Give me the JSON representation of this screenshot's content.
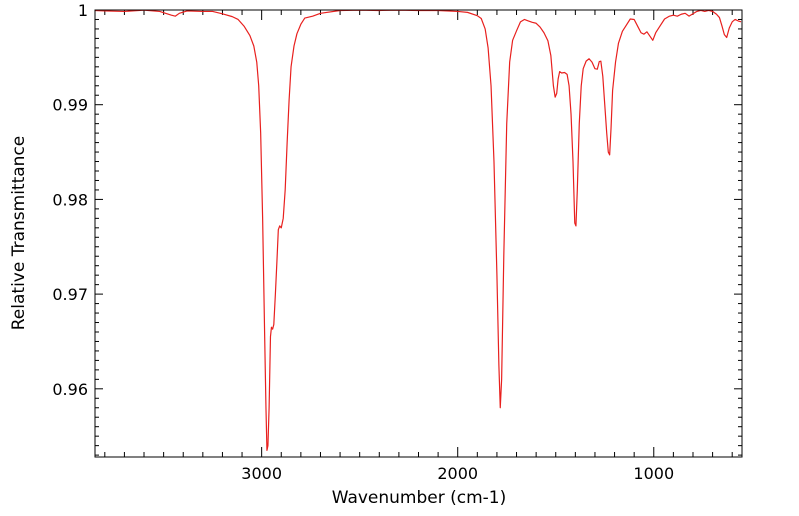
{
  "chart_data": {
    "type": "line",
    "title": "",
    "xlabel": "Wavenumber (cm-1)",
    "ylabel": "Relative Transmittance",
    "xlim": [
      3850,
      550
    ],
    "ylim": [
      0.9528,
      1.0
    ],
    "x_reversed": true,
    "grid": false,
    "legend": "none",
    "line_color": "#e8201e",
    "axis_color": "#000000",
    "x_ticks": [
      {
        "value": 3000,
        "label": "3000"
      },
      {
        "value": 2000,
        "label": "2000"
      },
      {
        "value": 1000,
        "label": "1000"
      }
    ],
    "y_ticks": [
      {
        "value": 1.0,
        "label": "1"
      },
      {
        "value": 0.99,
        "label": "0.99"
      },
      {
        "value": 0.98,
        "label": "0.98"
      },
      {
        "value": 0.97,
        "label": "0.97"
      },
      {
        "value": 0.96,
        "label": "0.96"
      }
    ],
    "series": [
      {
        "points": [
          [
            3850,
            0.99995
          ],
          [
            3800,
            0.9999
          ],
          [
            3700,
            0.99985
          ],
          [
            3600,
            0.99998
          ],
          [
            3520,
            0.99985
          ],
          [
            3460,
            0.99945
          ],
          [
            3440,
            0.99935
          ],
          [
            3420,
            0.99965
          ],
          [
            3380,
            0.9999
          ],
          [
            3300,
            0.99985
          ],
          [
            3250,
            0.99985
          ],
          [
            3200,
            0.9996
          ],
          [
            3150,
            0.9993
          ],
          [
            3120,
            0.999
          ],
          [
            3090,
            0.9983
          ],
          [
            3060,
            0.9973
          ],
          [
            3040,
            0.9962
          ],
          [
            3025,
            0.9945
          ],
          [
            3015,
            0.992
          ],
          [
            3005,
            0.987
          ],
          [
            2995,
            0.978
          ],
          [
            2985,
            0.966
          ],
          [
            2978,
            0.958
          ],
          [
            2973,
            0.9535
          ],
          [
            2968,
            0.954
          ],
          [
            2962,
            0.958
          ],
          [
            2955,
            0.9655
          ],
          [
            2950,
            0.9665
          ],
          [
            2944,
            0.9663
          ],
          [
            2938,
            0.9668
          ],
          [
            2930,
            0.97
          ],
          [
            2922,
            0.9735
          ],
          [
            2915,
            0.9768
          ],
          [
            2908,
            0.9772
          ],
          [
            2900,
            0.977
          ],
          [
            2890,
            0.978
          ],
          [
            2880,
            0.981
          ],
          [
            2870,
            0.986
          ],
          [
            2860,
            0.9905
          ],
          [
            2850,
            0.994
          ],
          [
            2835,
            0.9962
          ],
          [
            2820,
            0.9975
          ],
          [
            2800,
            0.9985
          ],
          [
            2780,
            0.99915
          ],
          [
            2740,
            0.99935
          ],
          [
            2700,
            0.99965
          ],
          [
            2600,
            0.99995
          ],
          [
            2500,
            0.99998
          ],
          [
            2400,
            0.99995
          ],
          [
            2300,
            0.99998
          ],
          [
            2200,
            0.99995
          ],
          [
            2100,
            0.99995
          ],
          [
            2000,
            0.99985
          ],
          [
            1950,
            0.99975
          ],
          [
            1900,
            0.9994
          ],
          [
            1880,
            0.9991
          ],
          [
            1860,
            0.998
          ],
          [
            1845,
            0.996
          ],
          [
            1830,
            0.992
          ],
          [
            1815,
            0.984
          ],
          [
            1800,
            0.972
          ],
          [
            1790,
            0.9625
          ],
          [
            1783,
            0.958
          ],
          [
            1776,
            0.961
          ],
          [
            1765,
            0.974
          ],
          [
            1750,
            0.988
          ],
          [
            1735,
            0.9945
          ],
          [
            1720,
            0.9968
          ],
          [
            1700,
            0.9978
          ],
          [
            1680,
            0.99875
          ],
          [
            1660,
            0.999
          ],
          [
            1640,
            0.99885
          ],
          [
            1620,
            0.9987
          ],
          [
            1600,
            0.9986
          ],
          [
            1580,
            0.9982
          ],
          [
            1560,
            0.9976
          ],
          [
            1540,
            0.99675
          ],
          [
            1525,
            0.9952
          ],
          [
            1512,
            0.992
          ],
          [
            1503,
            0.9908
          ],
          [
            1495,
            0.9912
          ],
          [
            1488,
            0.9927
          ],
          [
            1480,
            0.9935
          ],
          [
            1470,
            0.99335
          ],
          [
            1455,
            0.9934
          ],
          [
            1442,
            0.9932
          ],
          [
            1432,
            0.992
          ],
          [
            1422,
            0.989
          ],
          [
            1412,
            0.984
          ],
          [
            1403,
            0.9775
          ],
          [
            1397,
            0.9772
          ],
          [
            1390,
            0.981
          ],
          [
            1380,
            0.988
          ],
          [
            1370,
            0.992
          ],
          [
            1360,
            0.9938
          ],
          [
            1345,
            0.9946
          ],
          [
            1330,
            0.99485
          ],
          [
            1315,
            0.9945
          ],
          [
            1300,
            0.9938
          ],
          [
            1288,
            0.99375
          ],
          [
            1278,
            0.99455
          ],
          [
            1270,
            0.9946
          ],
          [
            1260,
            0.993
          ],
          [
            1250,
            0.99
          ],
          [
            1240,
            0.987
          ],
          [
            1232,
            0.985
          ],
          [
            1225,
            0.9847
          ],
          [
            1218,
            0.9875
          ],
          [
            1210,
            0.9915
          ],
          [
            1195,
            0.9945
          ],
          [
            1180,
            0.9965
          ],
          [
            1160,
            0.99775
          ],
          [
            1140,
            0.9984
          ],
          [
            1120,
            0.99905
          ],
          [
            1100,
            0.999
          ],
          [
            1080,
            0.9982
          ],
          [
            1065,
            0.9976
          ],
          [
            1050,
            0.99745
          ],
          [
            1035,
            0.9977
          ],
          [
            1020,
            0.99725
          ],
          [
            1005,
            0.9968
          ],
          [
            990,
            0.9976
          ],
          [
            970,
            0.99825
          ],
          [
            945,
            0.99905
          ],
          [
            920,
            0.99935
          ],
          [
            900,
            0.99945
          ],
          [
            880,
            0.99935
          ],
          [
            860,
            0.99955
          ],
          [
            840,
            0.99965
          ],
          [
            820,
            0.99935
          ],
          [
            800,
            0.9996
          ],
          [
            780,
            0.99985
          ],
          [
            760,
            0.99995
          ],
          [
            740,
            0.99985
          ],
          [
            720,
            0.99995
          ],
          [
            700,
            0.99985
          ],
          [
            680,
            0.99955
          ],
          [
            665,
            0.9992
          ],
          [
            652,
            0.9983
          ],
          [
            640,
            0.9974
          ],
          [
            628,
            0.9971
          ],
          [
            615,
            0.9981
          ],
          [
            600,
            0.99875
          ],
          [
            585,
            0.999
          ],
          [
            570,
            0.99885
          ],
          [
            555,
            0.99875
          ]
        ]
      }
    ]
  }
}
